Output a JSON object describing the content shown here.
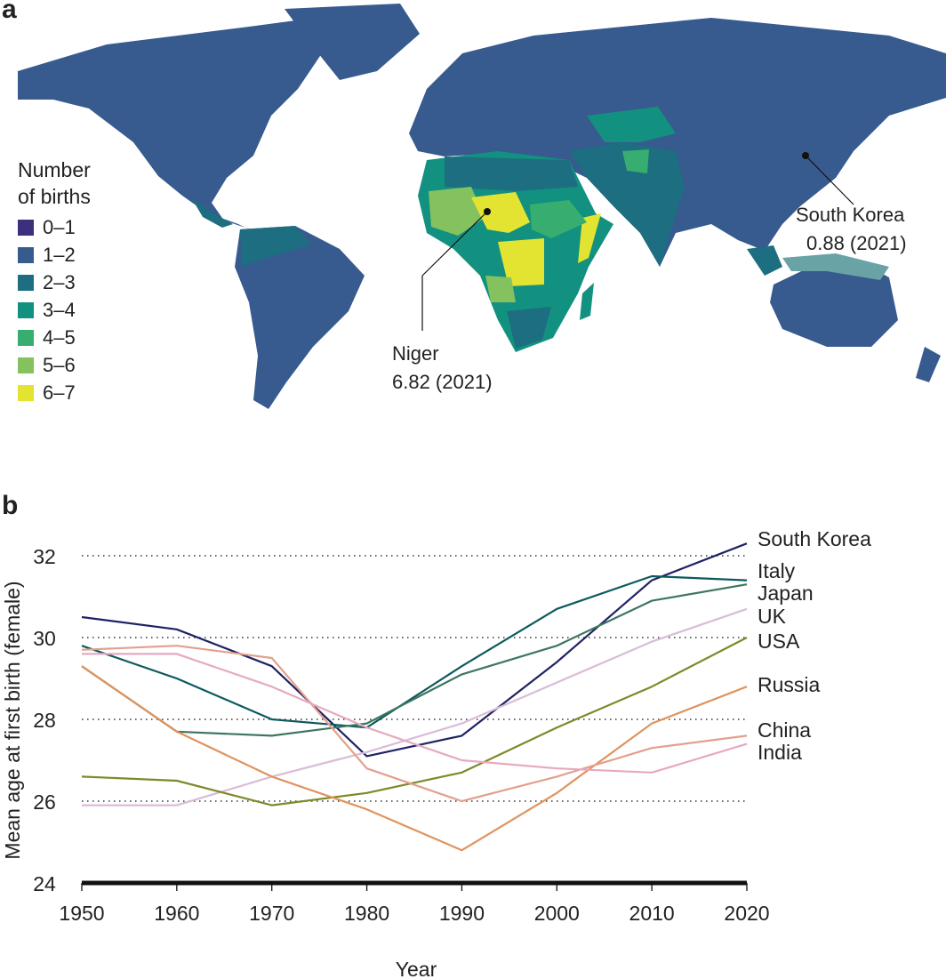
{
  "panel_a": {
    "letter": "a",
    "legend": {
      "title_line1": "Number",
      "title_line2": "of births",
      "items": [
        {
          "label": "0–1",
          "color": "#3b2f7e"
        },
        {
          "label": "1–2",
          "color": "#375a8f"
        },
        {
          "label": "2–3",
          "color": "#1d6e80"
        },
        {
          "label": "3–4",
          "color": "#129180"
        },
        {
          "label": "4–5",
          "color": "#37ae6f"
        },
        {
          "label": "5–6",
          "color": "#84c15f"
        },
        {
          "label": "6–7",
          "color": "#e3e332"
        }
      ]
    },
    "annotations": {
      "niger": {
        "name": "Niger",
        "value": "6.82 (2021)"
      },
      "south_korea": {
        "name": "South Korea",
        "value": "0.88 (2021)"
      }
    }
  },
  "panel_b": {
    "letter": "b"
  },
  "chart_data": {
    "type": "line",
    "xlabel": "Year",
    "ylabel": "Mean age at first birth (female)",
    "x": [
      1950,
      1960,
      1970,
      1980,
      1990,
      2000,
      2010,
      2020
    ],
    "xlim": [
      1950,
      2020
    ],
    "ylim": [
      24,
      32.5
    ],
    "xticks": [
      "1950",
      "1960",
      "1970",
      "1980",
      "1990",
      "2000",
      "2010",
      "2020"
    ],
    "yticks": [
      "24",
      "26",
      "28",
      "30",
      "32"
    ],
    "grid": "horizontal dotted",
    "legend": "direct labels at right",
    "series": [
      {
        "name": "South Korea",
        "color": "#1f2264",
        "values": [
          30.5,
          30.2,
          29.3,
          27.1,
          27.6,
          29.4,
          31.4,
          32.3
        ]
      },
      {
        "name": "Italy",
        "color": "#0d5a5e",
        "values": [
          29.8,
          29.0,
          28.0,
          27.8,
          29.3,
          30.7,
          31.5,
          31.4
        ]
      },
      {
        "name": "Japan",
        "color": "#3e7660",
        "values": [
          29.3,
          27.7,
          27.6,
          27.9,
          29.1,
          29.8,
          30.9,
          31.3
        ]
      },
      {
        "name": "UK",
        "color": "#d9bcd8",
        "values": [
          25.9,
          25.9,
          26.6,
          27.2,
          27.9,
          28.9,
          29.9,
          30.7
        ]
      },
      {
        "name": "USA",
        "color": "#7d8a2a",
        "values": [
          26.6,
          26.5,
          25.9,
          26.2,
          26.7,
          27.8,
          28.8,
          30.0
        ]
      },
      {
        "name": "Russia",
        "color": "#e0935e",
        "values": [
          29.3,
          27.7,
          26.6,
          25.8,
          24.8,
          26.2,
          27.9,
          28.8
        ]
      },
      {
        "name": "China",
        "color": "#e3a08c",
        "values": [
          29.7,
          29.8,
          29.5,
          26.8,
          26.0,
          26.6,
          27.3,
          27.6
        ]
      },
      {
        "name": "India",
        "color": "#e7a9c0",
        "values": [
          29.6,
          29.6,
          28.8,
          27.8,
          27.0,
          26.8,
          26.7,
          27.4
        ]
      }
    ]
  }
}
